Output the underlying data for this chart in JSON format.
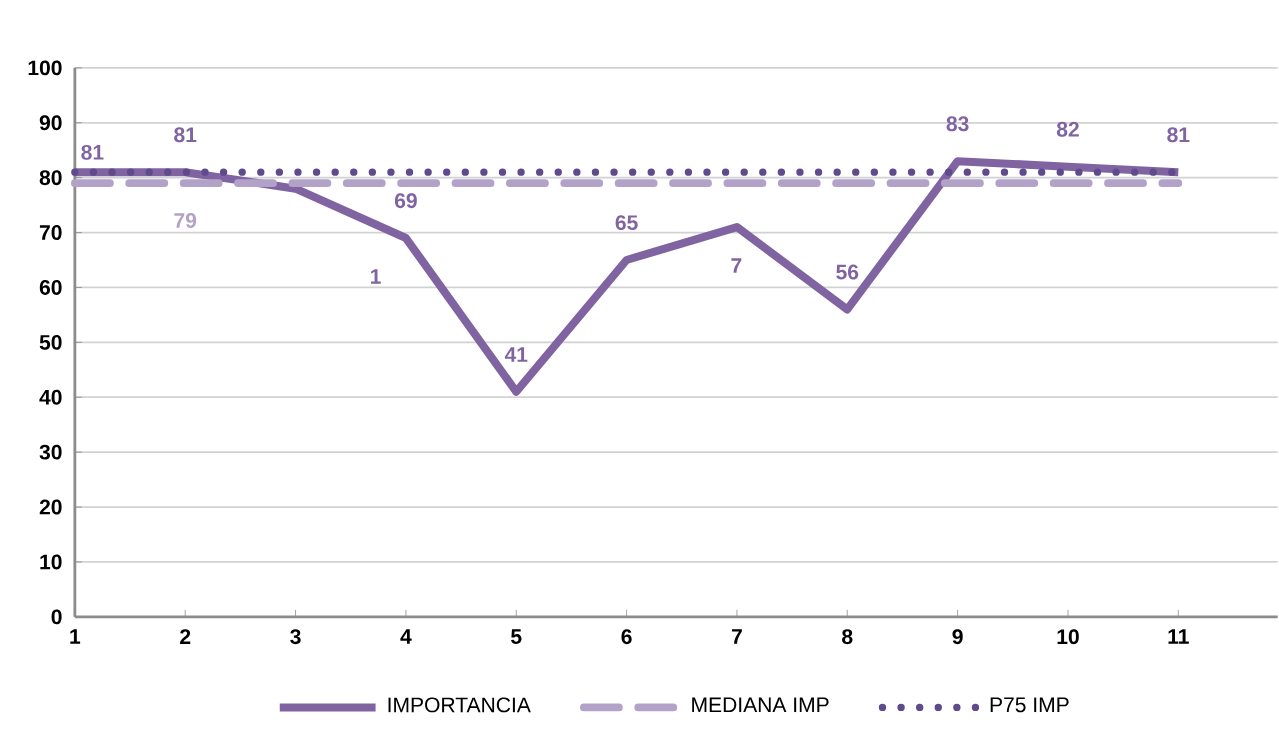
{
  "chart_data": {
    "type": "line",
    "categories": [
      "1",
      "2",
      "3",
      "4",
      "5",
      "6",
      "7",
      "8",
      "9",
      "10",
      "11"
    ],
    "series": [
      {
        "name": "IMPORTANCIA",
        "color": "#8064a2",
        "line_style": "solid",
        "values": [
          81,
          81,
          78,
          69,
          41,
          65,
          71,
          56,
          83,
          82,
          81
        ],
        "value_labels": [
          "81",
          "81",
          null,
          "69",
          "41",
          "65",
          null,
          "56",
          "83",
          "82",
          "81"
        ]
      },
      {
        "name": "MEDIANA IMP",
        "color": "#b3a2c7",
        "line_style": "dashed",
        "values": [
          79,
          79,
          79,
          79,
          79,
          79,
          79,
          79,
          79,
          79,
          79
        ],
        "value_labels": [
          null,
          "79",
          null,
          null,
          null,
          null,
          null,
          null,
          null,
          null,
          null
        ]
      },
      {
        "name": "P75 IMP",
        "color": "#5f4b8b",
        "line_style": "dotted",
        "values": [
          81,
          81,
          81,
          81,
          81,
          81,
          81,
          81,
          81,
          81,
          81
        ]
      }
    ],
    "annotations": [
      "1",
      "7"
    ],
    "ylim": [
      0,
      100
    ],
    "yticks": [
      0,
      10,
      20,
      30,
      40,
      50,
      60,
      70,
      80,
      90,
      100
    ],
    "grid": "y",
    "legend": "bottom",
    "marker": "none"
  }
}
